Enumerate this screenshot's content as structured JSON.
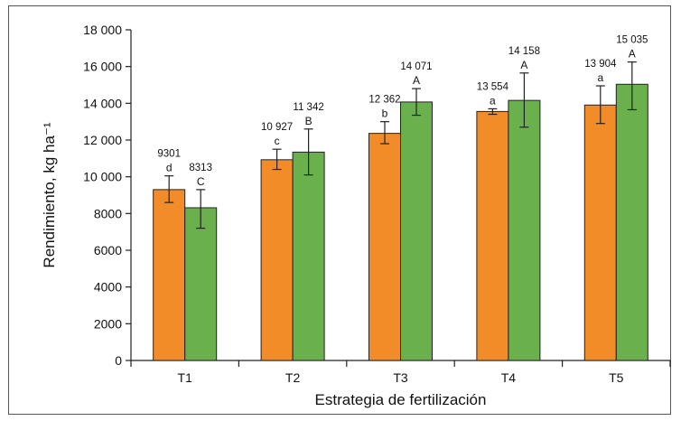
{
  "chart_data": {
    "type": "bar",
    "xlabel": "Estrategia de fertilización",
    "ylabel": "Rendimiento, kg ha⁻¹",
    "ylim": [
      0,
      18000
    ],
    "yticks": [
      0,
      2000,
      4000,
      6000,
      8000,
      10000,
      12000,
      14000,
      16000,
      18000
    ],
    "ytick_labels": [
      "0",
      "2000",
      "4000",
      "6000",
      "8000",
      "10 000",
      "12 000",
      "14 000",
      "16 000",
      "18 000"
    ],
    "categories": [
      "T1",
      "T2",
      "T3",
      "T4",
      "T5"
    ],
    "grid": false,
    "legend": "none",
    "series": [
      {
        "color": "#f28c28",
        "values": [
          9301,
          10927,
          12362,
          13554,
          13904
        ],
        "value_labels": [
          "9301",
          "10 927",
          "12 362",
          "13 554",
          "13 904"
        ],
        "error_low": [
          8600,
          10400,
          11800,
          13400,
          12900
        ],
        "error_high": [
          10050,
          11500,
          13000,
          13700,
          14950
        ],
        "letters": [
          "d",
          "c",
          "b",
          "a",
          "a"
        ]
      },
      {
        "color": "#6ab04c",
        "values": [
          8313,
          11342,
          14071,
          14158,
          15035
        ],
        "value_labels": [
          "8313",
          "11 342",
          "14 071",
          "14 158",
          "15 035"
        ],
        "error_low": [
          7200,
          10100,
          13350,
          12700,
          13650
        ],
        "error_high": [
          9300,
          12600,
          14800,
          15650,
          16250
        ],
        "letters": [
          "C",
          "B",
          "A",
          "A",
          "A"
        ]
      }
    ]
  }
}
